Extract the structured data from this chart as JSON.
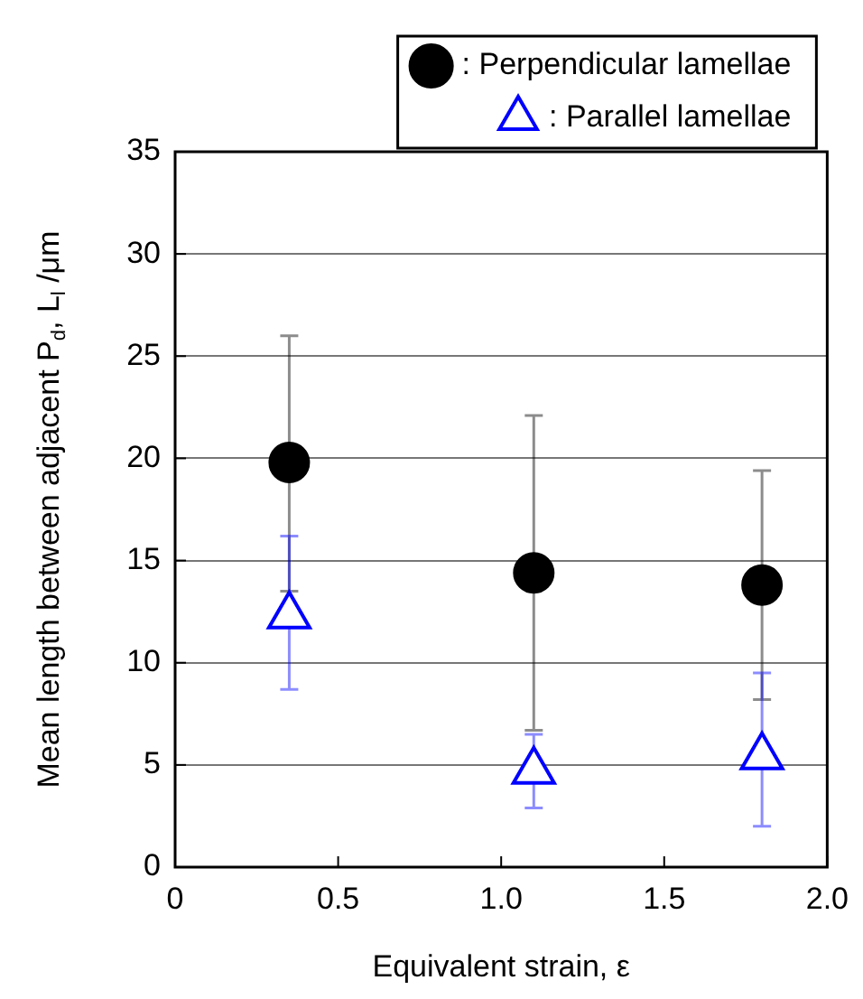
{
  "chart_data": {
    "type": "scatter",
    "xlabel": "Equivalent strain, ε",
    "ylabel": "Mean length between adjacent P$_{d}$, L$_{l}$ /μm",
    "x": [
      0.35,
      1.1,
      1.8
    ],
    "series": [
      {
        "name": ": Perpendicular lamellae",
        "color": "#000000",
        "marker": "circle",
        "values": [
          19.8,
          14.4,
          13.8
        ],
        "errors": [
          [
            13.5,
            26.0
          ],
          [
            6.7,
            22.1
          ],
          [
            8.2,
            19.4
          ]
        ]
      },
      {
        "name": ": Parallel lamellae",
        "color": "#0000ff",
        "marker": "triangle",
        "values": [
          12.3,
          4.7,
          5.4
        ],
        "errors": [
          [
            8.7,
            16.2
          ],
          [
            2.9,
            6.5
          ],
          [
            2.0,
            9.5
          ]
        ]
      }
    ],
    "xlim": [
      0,
      2
    ],
    "xticks": [
      0,
      0.5,
      {
        "value": 1,
        "label": "1.0"
      },
      1.5,
      {
        "value": 2,
        "label": "2.0"
      }
    ],
    "ylim": [
      0,
      35
    ],
    "yticks": [
      0,
      5,
      10,
      15,
      20,
      25,
      30,
      35
    ],
    "grid": "y",
    "legend": "top right"
  }
}
